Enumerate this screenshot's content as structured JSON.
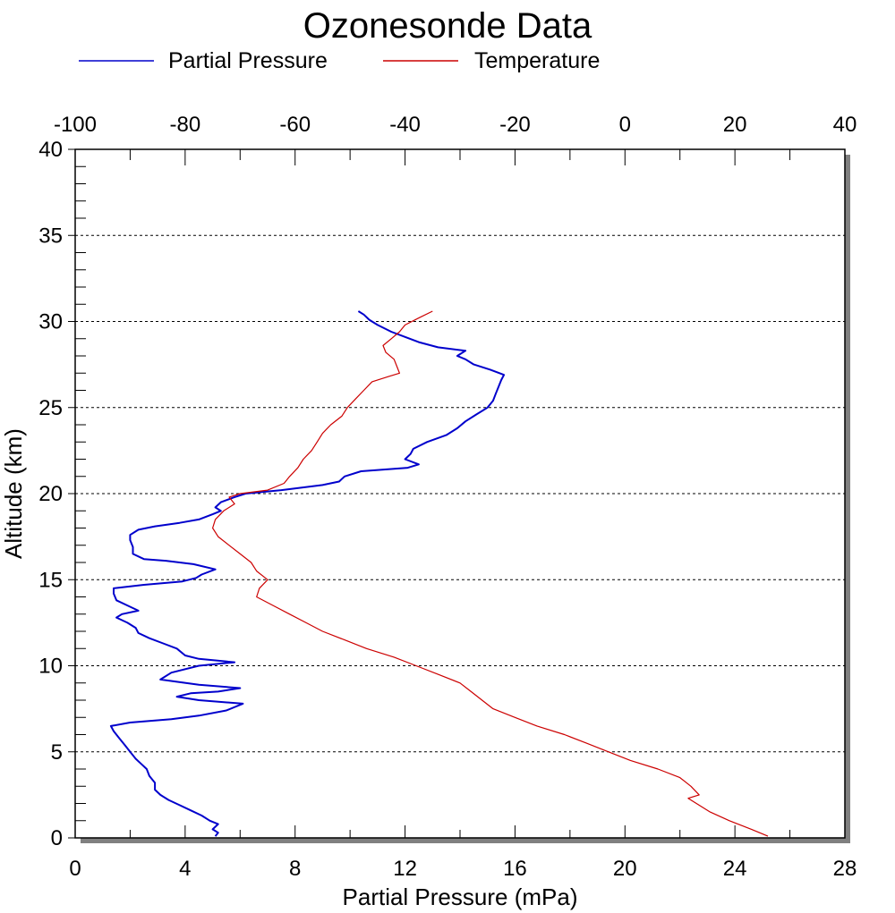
{
  "chart_data": {
    "type": "line",
    "title": "Ozonesonde Data",
    "xlabel": "Partial Pressure (mPa)",
    "ylabel": "Altitude (km)",
    "x_bottom": {
      "range": [
        0,
        28
      ],
      "ticks": [
        0,
        4,
        8,
        12,
        16,
        20,
        24,
        28
      ]
    },
    "x_top": {
      "range": [
        -100,
        40
      ],
      "ticks": [
        -100,
        -80,
        -60,
        -40,
        -20,
        0,
        20,
        40
      ]
    },
    "y": {
      "range": [
        0,
        40
      ],
      "ticks": [
        0,
        5,
        10,
        15,
        20,
        25,
        30,
        35,
        40
      ]
    },
    "grid": "horizontal-dashed",
    "legend_position": "top",
    "colors": {
      "partial_pressure": "#0000cc",
      "temperature": "#cc0000"
    },
    "series": [
      {
        "name": "Partial Pressure",
        "axis": "bottom",
        "points": [
          [
            5.1,
            0.1
          ],
          [
            5.2,
            0.3
          ],
          [
            5.0,
            0.5
          ],
          [
            5.2,
            0.8
          ],
          [
            4.9,
            1.0
          ],
          [
            4.6,
            1.3
          ],
          [
            4.2,
            1.6
          ],
          [
            3.8,
            1.9
          ],
          [
            3.4,
            2.2
          ],
          [
            3.1,
            2.5
          ],
          [
            2.9,
            2.8
          ],
          [
            2.9,
            3.2
          ],
          [
            2.7,
            3.6
          ],
          [
            2.6,
            4.0
          ],
          [
            2.4,
            4.3
          ],
          [
            2.2,
            4.6
          ],
          [
            2.0,
            5.0
          ],
          [
            1.8,
            5.4
          ],
          [
            1.6,
            5.8
          ],
          [
            1.4,
            6.2
          ],
          [
            1.3,
            6.5
          ],
          [
            2.0,
            6.7
          ],
          [
            3.5,
            6.9
          ],
          [
            4.5,
            7.1
          ],
          [
            5.5,
            7.4
          ],
          [
            6.1,
            7.8
          ],
          [
            4.5,
            8.0
          ],
          [
            3.7,
            8.2
          ],
          [
            4.2,
            8.4
          ],
          [
            5.2,
            8.5
          ],
          [
            6.0,
            8.7
          ],
          [
            4.5,
            8.9
          ],
          [
            3.1,
            9.2
          ],
          [
            3.5,
            9.6
          ],
          [
            4.5,
            10.0
          ],
          [
            5.8,
            10.2
          ],
          [
            4.5,
            10.4
          ],
          [
            4.0,
            10.6
          ],
          [
            3.7,
            11.0
          ],
          [
            3.2,
            11.3
          ],
          [
            2.7,
            11.6
          ],
          [
            2.3,
            11.9
          ],
          [
            2.2,
            12.2
          ],
          [
            1.9,
            12.5
          ],
          [
            1.5,
            12.8
          ],
          [
            1.7,
            13.0
          ],
          [
            2.3,
            13.2
          ],
          [
            1.9,
            13.5
          ],
          [
            1.5,
            13.8
          ],
          [
            1.4,
            14.2
          ],
          [
            1.4,
            14.5
          ],
          [
            2.5,
            14.7
          ],
          [
            3.9,
            14.9
          ],
          [
            4.4,
            15.1
          ],
          [
            4.6,
            15.3
          ],
          [
            5.1,
            15.6
          ],
          [
            4.3,
            15.9
          ],
          [
            3.3,
            16.1
          ],
          [
            2.5,
            16.2
          ],
          [
            2.1,
            16.5
          ],
          [
            2.1,
            16.9
          ],
          [
            2.0,
            17.3
          ],
          [
            2.0,
            17.6
          ],
          [
            2.3,
            17.9
          ],
          [
            2.9,
            18.1
          ],
          [
            3.8,
            18.3
          ],
          [
            4.5,
            18.5
          ],
          [
            5.0,
            18.8
          ],
          [
            5.3,
            19.0
          ],
          [
            5.1,
            19.2
          ],
          [
            5.3,
            19.5
          ],
          [
            5.8,
            19.8
          ],
          [
            6.2,
            20.0
          ],
          [
            7.5,
            20.2
          ],
          [
            9.0,
            20.5
          ],
          [
            9.6,
            20.7
          ],
          [
            9.8,
            21.0
          ],
          [
            10.4,
            21.3
          ],
          [
            12.1,
            21.5
          ],
          [
            12.5,
            21.7
          ],
          [
            12.0,
            22.0
          ],
          [
            12.2,
            22.3
          ],
          [
            12.3,
            22.6
          ],
          [
            12.8,
            23.0
          ],
          [
            13.5,
            23.4
          ],
          [
            13.9,
            23.8
          ],
          [
            14.2,
            24.2
          ],
          [
            14.6,
            24.6
          ],
          [
            15.0,
            25.0
          ],
          [
            15.2,
            25.4
          ],
          [
            15.3,
            25.8
          ],
          [
            15.4,
            26.2
          ],
          [
            15.5,
            26.6
          ],
          [
            15.6,
            26.9
          ],
          [
            15.1,
            27.2
          ],
          [
            14.5,
            27.5
          ],
          [
            14.2,
            27.8
          ],
          [
            13.9,
            28.0
          ],
          [
            14.2,
            28.3
          ],
          [
            13.2,
            28.5
          ],
          [
            12.5,
            28.8
          ],
          [
            12.0,
            29.1
          ],
          [
            11.5,
            29.4
          ],
          [
            11.0,
            29.8
          ],
          [
            10.7,
            30.1
          ],
          [
            10.5,
            30.4
          ],
          [
            10.3,
            30.6
          ]
        ]
      },
      {
        "name": "Temperature",
        "axis": "top",
        "points": [
          [
            -35.0,
            30.6
          ],
          [
            -37.5,
            30.2
          ],
          [
            -40.0,
            29.8
          ],
          [
            -41.0,
            29.4
          ],
          [
            -42.5,
            29.0
          ],
          [
            -44.0,
            28.6
          ],
          [
            -43.5,
            28.2
          ],
          [
            -42.0,
            27.8
          ],
          [
            -41.5,
            27.4
          ],
          [
            -41.0,
            27.0
          ],
          [
            -43.0,
            26.8
          ],
          [
            -46.0,
            26.5
          ],
          [
            -47.5,
            26.0
          ],
          [
            -49.0,
            25.5
          ],
          [
            -50.5,
            25.0
          ],
          [
            -51.5,
            24.5
          ],
          [
            -53.5,
            24.0
          ],
          [
            -55.0,
            23.5
          ],
          [
            -56.0,
            23.0
          ],
          [
            -57.0,
            22.5
          ],
          [
            -58.5,
            22.0
          ],
          [
            -59.5,
            21.5
          ],
          [
            -61.0,
            21.0
          ],
          [
            -62.0,
            20.6
          ],
          [
            -65.0,
            20.2
          ],
          [
            -70.0,
            20.0
          ],
          [
            -72.0,
            19.8
          ],
          [
            -71.0,
            19.4
          ],
          [
            -73.0,
            19.0
          ],
          [
            -74.5,
            18.5
          ],
          [
            -75.0,
            18.0
          ],
          [
            -74.0,
            17.5
          ],
          [
            -72.0,
            17.0
          ],
          [
            -70.0,
            16.5
          ],
          [
            -68.0,
            16.0
          ],
          [
            -67.0,
            15.5
          ],
          [
            -65.0,
            15.0
          ],
          [
            -66.5,
            14.5
          ],
          [
            -67.0,
            14.0
          ],
          [
            -64.0,
            13.5
          ],
          [
            -61.0,
            13.0
          ],
          [
            -58.0,
            12.5
          ],
          [
            -55.0,
            12.0
          ],
          [
            -51.0,
            11.5
          ],
          [
            -47.0,
            11.0
          ],
          [
            -42.0,
            10.5
          ],
          [
            -38.0,
            10.0
          ],
          [
            -34.0,
            9.5
          ],
          [
            -30.0,
            9.0
          ],
          [
            -28.0,
            8.5
          ],
          [
            -26.0,
            8.0
          ],
          [
            -24.0,
            7.5
          ],
          [
            -20.0,
            7.0
          ],
          [
            -16.0,
            6.5
          ],
          [
            -11.0,
            6.0
          ],
          [
            -7.0,
            5.5
          ],
          [
            -3.0,
            5.0
          ],
          [
            1.0,
            4.5
          ],
          [
            6.0,
            4.0
          ],
          [
            10.0,
            3.5
          ],
          [
            12.0,
            3.0
          ],
          [
            13.5,
            2.5
          ],
          [
            11.5,
            2.3
          ],
          [
            13.0,
            2.0
          ],
          [
            15.5,
            1.5
          ],
          [
            19.0,
            1.0
          ],
          [
            23.0,
            0.5
          ],
          [
            26.0,
            0.1
          ]
        ]
      }
    ]
  }
}
